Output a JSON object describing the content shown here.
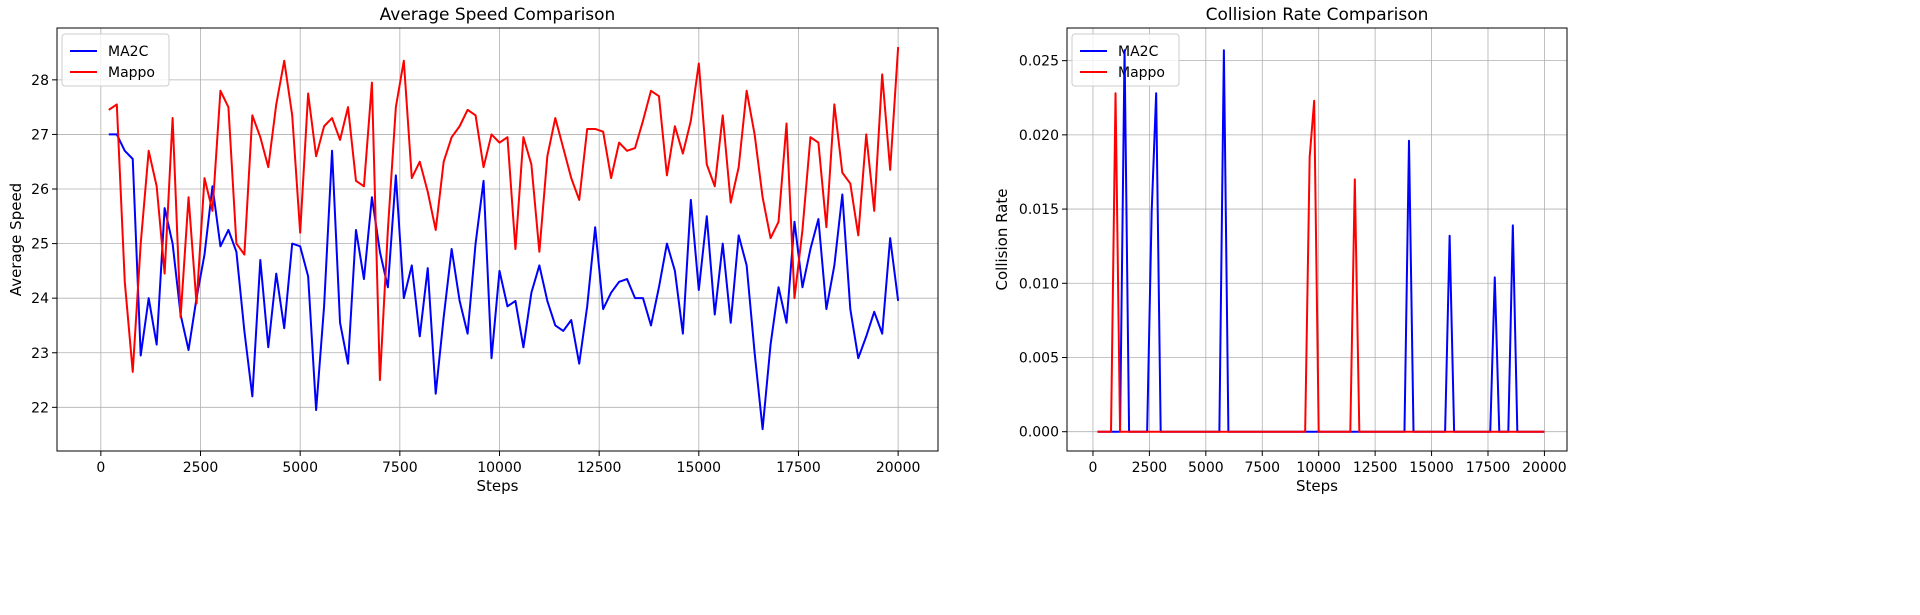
{
  "chart_data": [
    {
      "type": "line",
      "title": "Average Speed Comparison",
      "xlabel": "Steps",
      "ylabel": "Average Speed",
      "xlim": [
        -1100,
        21000
      ],
      "ylim": [
        21.2,
        28.95
      ],
      "xticks": [
        0,
        2500,
        5000,
        7500,
        10000,
        12500,
        15000,
        17500,
        20000
      ],
      "xtick_labels": [
        "0",
        "2500",
        "5000",
        "7500",
        "10000",
        "12500",
        "15000",
        "17500",
        "20000"
      ],
      "yticks": [
        22,
        23,
        24,
        25,
        26,
        27,
        28
      ],
      "ytick_labels": [
        "22",
        "23",
        "24",
        "25",
        "26",
        "27",
        "28"
      ],
      "grid": true,
      "legend_position": "top-left",
      "x": [
        200,
        400,
        600,
        800,
        1000,
        1200,
        1400,
        1600,
        1800,
        2000,
        2200,
        2400,
        2600,
        2800,
        3000,
        3200,
        3400,
        3600,
        3800,
        4000,
        4200,
        4400,
        4600,
        4800,
        5000,
        5200,
        5400,
        5600,
        5800,
        6000,
        6200,
        6400,
        6600,
        6800,
        7000,
        7200,
        7400,
        7600,
        7800,
        8000,
        8200,
        8400,
        8600,
        8800,
        9000,
        9200,
        9400,
        9600,
        9800,
        10000,
        10200,
        10400,
        10600,
        10800,
        11000,
        11200,
        11400,
        11600,
        11800,
        12000,
        12200,
        12400,
        12600,
        12800,
        13000,
        13200,
        13400,
        13600,
        13800,
        14000,
        14200,
        14400,
        14600,
        14800,
        15000,
        15200,
        15400,
        15600,
        15800,
        16000,
        16200,
        16400,
        16600,
        16800,
        17000,
        17200,
        17400,
        17600,
        17800,
        18000,
        18200,
        18400,
        18600,
        18800,
        19000,
        19200,
        19400,
        19600,
        19800,
        20000
      ],
      "series": [
        {
          "name": "MA2C",
          "color": "#0000ff",
          "values": [
            27.0,
            27.0,
            26.7,
            26.55,
            22.95,
            24.0,
            23.15,
            25.65,
            25.0,
            23.7,
            23.05,
            24.0,
            24.8,
            26.05,
            24.95,
            25.25,
            24.85,
            23.4,
            22.2,
            24.7,
            23.1,
            24.45,
            23.45,
            25.0,
            24.95,
            24.4,
            21.95,
            23.85,
            26.7,
            23.55,
            22.8,
            25.25,
            24.35,
            25.85,
            24.85,
            24.2,
            26.25,
            24.0,
            24.6,
            23.3,
            24.55,
            22.25,
            23.65,
            24.9,
            23.95,
            23.35,
            25.0,
            26.15,
            22.9,
            24.5,
            23.85,
            23.95,
            23.1,
            24.1,
            24.6,
            23.95,
            23.5,
            23.4,
            23.6,
            22.8,
            23.85,
            25.3,
            23.8,
            24.1,
            24.3,
            24.35,
            24.0,
            24.0,
            23.5,
            24.2,
            25.0,
            24.5,
            23.35,
            25.8,
            24.15,
            25.5,
            23.7,
            25.0,
            23.55,
            25.15,
            24.6,
            23.0,
            21.6,
            23.15,
            24.2,
            23.55,
            25.4,
            24.2,
            24.9,
            25.45,
            23.8,
            24.6,
            25.9,
            23.8,
            22.9,
            23.3,
            23.75,
            23.35,
            25.1,
            23.95
          ]
        },
        {
          "name": "Mappo",
          "color": "#ff0000",
          "values": [
            27.45,
            27.55,
            24.3,
            22.65,
            25.0,
            26.7,
            26.05,
            24.45,
            27.3,
            23.65,
            25.85,
            23.9,
            26.2,
            25.6,
            27.8,
            27.5,
            25.0,
            24.8,
            27.35,
            26.95,
            26.4,
            27.55,
            28.35,
            27.35,
            25.2,
            27.75,
            26.6,
            27.15,
            27.3,
            26.9,
            27.5,
            26.15,
            26.05,
            27.95,
            22.5,
            25.25,
            27.5,
            28.35,
            26.2,
            26.5,
            25.95,
            25.25,
            26.5,
            26.95,
            27.15,
            27.45,
            27.35,
            26.4,
            27.0,
            26.85,
            26.95,
            24.9,
            26.95,
            26.45,
            24.85,
            26.6,
            27.3,
            26.75,
            26.2,
            25.8,
            27.1,
            27.1,
            27.05,
            26.2,
            26.85,
            26.7,
            26.75,
            27.25,
            27.8,
            27.7,
            26.25,
            27.15,
            26.65,
            27.25,
            28.3,
            26.45,
            26.05,
            27.35,
            25.75,
            26.4,
            27.8,
            27.0,
            25.85,
            25.1,
            25.4,
            27.2,
            24.0,
            25.25,
            26.95,
            26.85,
            25.3,
            27.55,
            26.3,
            26.1,
            25.15,
            27.0,
            25.6,
            28.1,
            26.35,
            28.6
          ]
        }
      ]
    },
    {
      "type": "line",
      "title": "Collision Rate Comparison",
      "xlabel": "Steps",
      "ylabel": "Collision Rate",
      "xlim": [
        -1150,
        21000
      ],
      "ylim": [
        -0.0013,
        0.0272
      ],
      "xticks": [
        0,
        2500,
        5000,
        7500,
        10000,
        12500,
        15000,
        17500,
        20000
      ],
      "xtick_labels": [
        "0",
        "2500",
        "5000",
        "7500",
        "10000",
        "12500",
        "15000",
        "17500",
        "20000"
      ],
      "yticks": [
        0.0,
        0.005,
        0.01,
        0.015,
        0.02,
        0.025
      ],
      "ytick_labels": [
        "0.000",
        "0.005",
        "0.010",
        "0.015",
        "0.020",
        "0.025"
      ],
      "grid": true,
      "legend_position": "top-left",
      "series": [
        {
          "name": "MA2C",
          "color": "#0000ff",
          "points": [
            [
              200,
              0
            ],
            [
              1200,
              0
            ],
            [
              1400,
              0.0257
            ],
            [
              1600,
              0
            ],
            [
              2400,
              0
            ],
            [
              2600,
              0.0148
            ],
            [
              2800,
              0.0228
            ],
            [
              3000,
              0
            ],
            [
              5600,
              0
            ],
            [
              5800,
              0.0257
            ],
            [
              6000,
              0
            ],
            [
              13800,
              0
            ],
            [
              14000,
              0.0196
            ],
            [
              14200,
              0
            ],
            [
              15600,
              0
            ],
            [
              15800,
              0.0132
            ],
            [
              16000,
              0
            ],
            [
              17600,
              0
            ],
            [
              17800,
              0.0104
            ],
            [
              18000,
              0
            ],
            [
              18400,
              0
            ],
            [
              18600,
              0.0139
            ],
            [
              18800,
              0
            ],
            [
              20000,
              0
            ]
          ]
        },
        {
          "name": "Mappo",
          "color": "#ff0000",
          "points": [
            [
              200,
              0
            ],
            [
              800,
              0
            ],
            [
              1000,
              0.0228
            ],
            [
              1200,
              0
            ],
            [
              9400,
              0
            ],
            [
              9600,
              0.0185
            ],
            [
              9800,
              0.0223
            ],
            [
              10000,
              0
            ],
            [
              11400,
              0
            ],
            [
              11600,
              0.017
            ],
            [
              11800,
              0
            ],
            [
              20000,
              0
            ]
          ]
        }
      ]
    }
  ]
}
